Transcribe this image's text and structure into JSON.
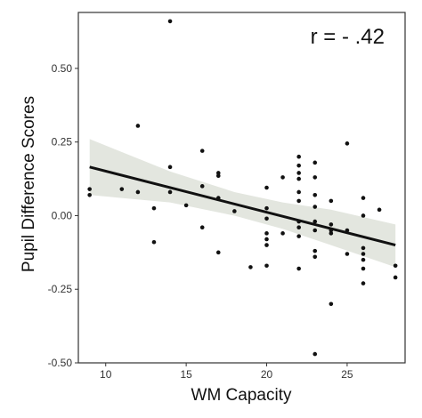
{
  "chart_data": {
    "type": "scatter",
    "title": "",
    "xlabel": "WM Capacity",
    "ylabel": "Pupil Difference Scores",
    "annotation": "r = - .42",
    "annotation_position": "top-right",
    "xlim": [
      8.3,
      28.6
    ],
    "ylim": [
      -0.5,
      0.69
    ],
    "x_ticks": [
      10,
      15,
      20,
      25
    ],
    "y_ticks": [
      -0.5,
      -0.25,
      0.0,
      0.25,
      0.5
    ],
    "y_tick_labels": [
      "-0.50",
      "-0.25",
      "0.00",
      "0.25",
      "0.50"
    ],
    "grid": false,
    "colors": {
      "points": "#111111",
      "fit_line": "#111111",
      "confidence_band": "#e3e6df",
      "panel_border": "#333333"
    },
    "points": [
      {
        "x": 9,
        "y": 0.09
      },
      {
        "x": 9,
        "y": 0.07
      },
      {
        "x": 11,
        "y": 0.09
      },
      {
        "x": 12,
        "y": 0.305
      },
      {
        "x": 12,
        "y": 0.08
      },
      {
        "x": 13,
        "y": 0.025
      },
      {
        "x": 13,
        "y": -0.09
      },
      {
        "x": 14,
        "y": 0.66
      },
      {
        "x": 14,
        "y": 0.165
      },
      {
        "x": 14,
        "y": 0.08
      },
      {
        "x": 15,
        "y": 0.035
      },
      {
        "x": 16,
        "y": 0.22
      },
      {
        "x": 16,
        "y": 0.1
      },
      {
        "x": 16,
        "y": -0.04
      },
      {
        "x": 17,
        "y": 0.145
      },
      {
        "x": 17,
        "y": 0.135
      },
      {
        "x": 17,
        "y": 0.06
      },
      {
        "x": 17,
        "y": -0.125
      },
      {
        "x": 18,
        "y": 0.015
      },
      {
        "x": 19,
        "y": -0.175
      },
      {
        "x": 20,
        "y": 0.095
      },
      {
        "x": 20,
        "y": 0.025
      },
      {
        "x": 20,
        "y": -0.01
      },
      {
        "x": 20,
        "y": -0.06
      },
      {
        "x": 20,
        "y": -0.08
      },
      {
        "x": 20,
        "y": -0.1
      },
      {
        "x": 20,
        "y": -0.17
      },
      {
        "x": 21,
        "y": 0.13
      },
      {
        "x": 21,
        "y": -0.06
      },
      {
        "x": 22,
        "y": 0.2
      },
      {
        "x": 22,
        "y": 0.17
      },
      {
        "x": 22,
        "y": 0.145
      },
      {
        "x": 22,
        "y": 0.125
      },
      {
        "x": 22,
        "y": 0.08
      },
      {
        "x": 22,
        "y": 0.05
      },
      {
        "x": 22,
        "y": -0.02
      },
      {
        "x": 22,
        "y": -0.04
      },
      {
        "x": 22,
        "y": -0.07
      },
      {
        "x": 22,
        "y": -0.18
      },
      {
        "x": 23,
        "y": 0.18
      },
      {
        "x": 23,
        "y": 0.13
      },
      {
        "x": 23,
        "y": 0.07
      },
      {
        "x": 23,
        "y": 0.03
      },
      {
        "x": 23,
        "y": -0.02
      },
      {
        "x": 23,
        "y": -0.05
      },
      {
        "x": 23,
        "y": -0.12
      },
      {
        "x": 23,
        "y": -0.14
      },
      {
        "x": 23,
        "y": -0.47
      },
      {
        "x": 24,
        "y": 0.05
      },
      {
        "x": 24,
        "y": -0.03
      },
      {
        "x": 24,
        "y": -0.05
      },
      {
        "x": 24,
        "y": -0.06
      },
      {
        "x": 24,
        "y": -0.3
      },
      {
        "x": 25,
        "y": 0.245
      },
      {
        "x": 25,
        "y": -0.05
      },
      {
        "x": 25,
        "y": -0.13
      },
      {
        "x": 26,
        "y": 0.06
      },
      {
        "x": 26,
        "y": 0.0
      },
      {
        "x": 26,
        "y": -0.11
      },
      {
        "x": 26,
        "y": -0.13
      },
      {
        "x": 26,
        "y": -0.15
      },
      {
        "x": 26,
        "y": -0.18
      },
      {
        "x": 26,
        "y": -0.23
      },
      {
        "x": 27,
        "y": 0.02
      },
      {
        "x": 28,
        "y": -0.17
      },
      {
        "x": 28,
        "y": -0.21
      }
    ],
    "fit_line": {
      "x": [
        9,
        28
      ],
      "y": [
        0.165,
        -0.1
      ]
    },
    "confidence_band": {
      "x": [
        9,
        14,
        18,
        21,
        24,
        28
      ],
      "upper": [
        0.26,
        0.15,
        0.08,
        0.045,
        0.02,
        -0.03
      ],
      "lower": [
        0.07,
        0.045,
        0.0,
        -0.045,
        -0.1,
        -0.175
      ]
    }
  }
}
